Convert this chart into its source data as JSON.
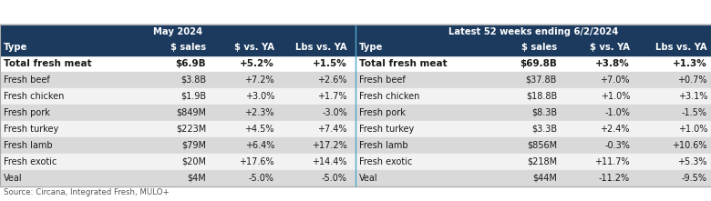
{
  "title_left": "May 2024",
  "title_right": "Latest 52 weeks ending 6/2/2024",
  "col_headers": [
    "Type",
    "$ sales",
    "$ vs. YA",
    "Lbs vs. YA"
  ],
  "left_rows": [
    [
      "Total fresh meat",
      "$6.9B",
      "+5.2%",
      "+1.5%"
    ],
    [
      "Fresh beef",
      "$3.8B",
      "+7.2%",
      "+2.6%"
    ],
    [
      "Fresh chicken",
      "$1.9B",
      "+3.0%",
      "+1.7%"
    ],
    [
      "Fresh pork",
      "$849M",
      "+2.3%",
      "-3.0%"
    ],
    [
      "Fresh turkey",
      "$223M",
      "+4.5%",
      "+7.4%"
    ],
    [
      "Fresh lamb",
      "$79M",
      "+6.4%",
      "+17.2%"
    ],
    [
      "Fresh exotic",
      "$20M",
      "+17.6%",
      "+14.4%"
    ],
    [
      "Veal",
      "$4M",
      "-5.0%",
      "-5.0%"
    ]
  ],
  "right_rows": [
    [
      "Total fresh meat",
      "$69.8B",
      "+3.8%",
      "+1.3%"
    ],
    [
      "Fresh beef",
      "$37.8B",
      "+7.0%",
      "+0.7%"
    ],
    [
      "Fresh chicken",
      "$18.8B",
      "+1.0%",
      "+3.1%"
    ],
    [
      "Fresh pork",
      "$8.3B",
      "-1.0%",
      "-1.5%"
    ],
    [
      "Fresh turkey",
      "$3.3B",
      "+2.4%",
      "+1.0%"
    ],
    [
      "Fresh lamb",
      "$856M",
      "-0.3%",
      "+10.6%"
    ],
    [
      "Fresh exotic",
      "$218M",
      "+11.7%",
      "+5.3%"
    ],
    [
      "Veal",
      "$44M",
      "-11.2%",
      "-9.5%"
    ]
  ],
  "source": "Source: Circana, Integrated Fresh, MULO+",
  "header_bg": "#1b3a5e",
  "header_fg": "#ffffff",
  "total_row_bg": "#ffffff",
  "row_bg_odd": "#d9d9d9",
  "row_bg_even": "#f2f2f2",
  "divider_color": "#4fa8c8",
  "text_color": "#1a1a1a",
  "source_color": "#555555",
  "font_size": 7.0,
  "header_font_size": 7.2,
  "bold_font_size": 7.5
}
